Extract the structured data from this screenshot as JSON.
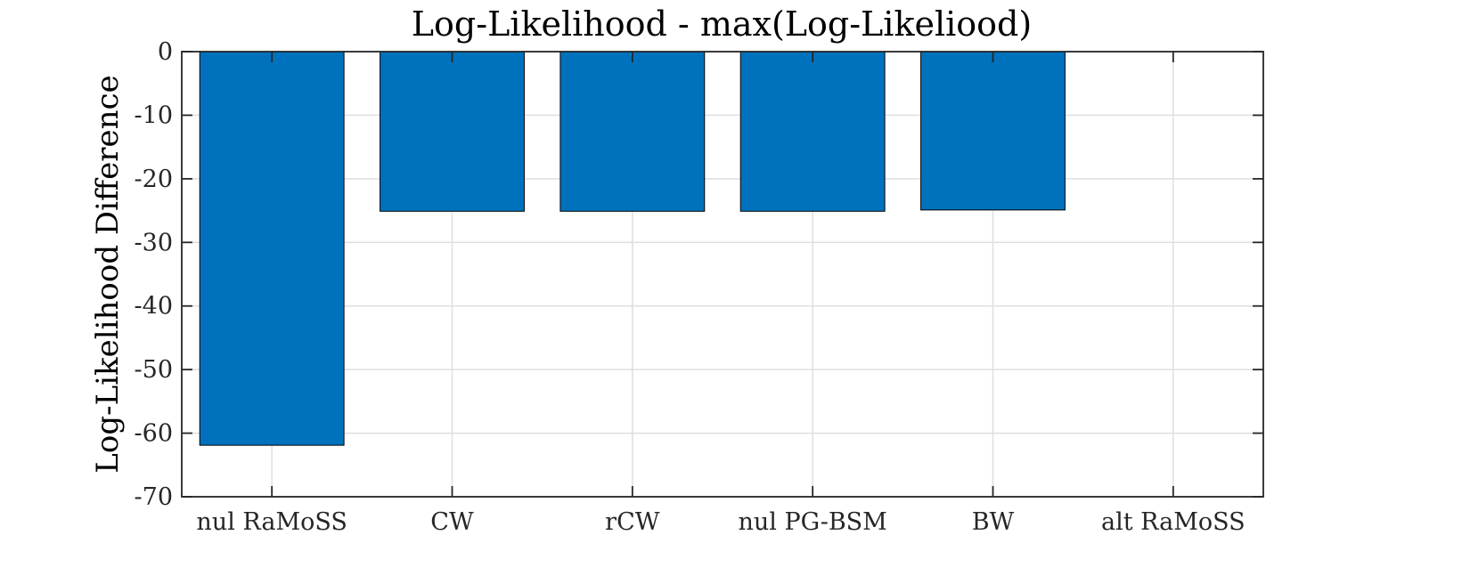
{
  "chart_data": {
    "type": "bar",
    "title": "Log-Likelihood - max(Log-Likeliood)",
    "xlabel": "",
    "ylabel": "Log-Likelihood Difference",
    "categories": [
      "nul RaMoSS",
      "CW",
      "rCW",
      "nul PG-BSM",
      "BW",
      "alt RaMoSS"
    ],
    "values": [
      -61.9,
      -25.1,
      -25.1,
      -25.1,
      -24.9,
      0
    ],
    "ylim": [
      -70,
      0
    ],
    "yticks": [
      0,
      -10,
      -20,
      -30,
      -40,
      -50,
      -60,
      -70
    ],
    "grid": true,
    "bar_color": "#0072BD"
  }
}
